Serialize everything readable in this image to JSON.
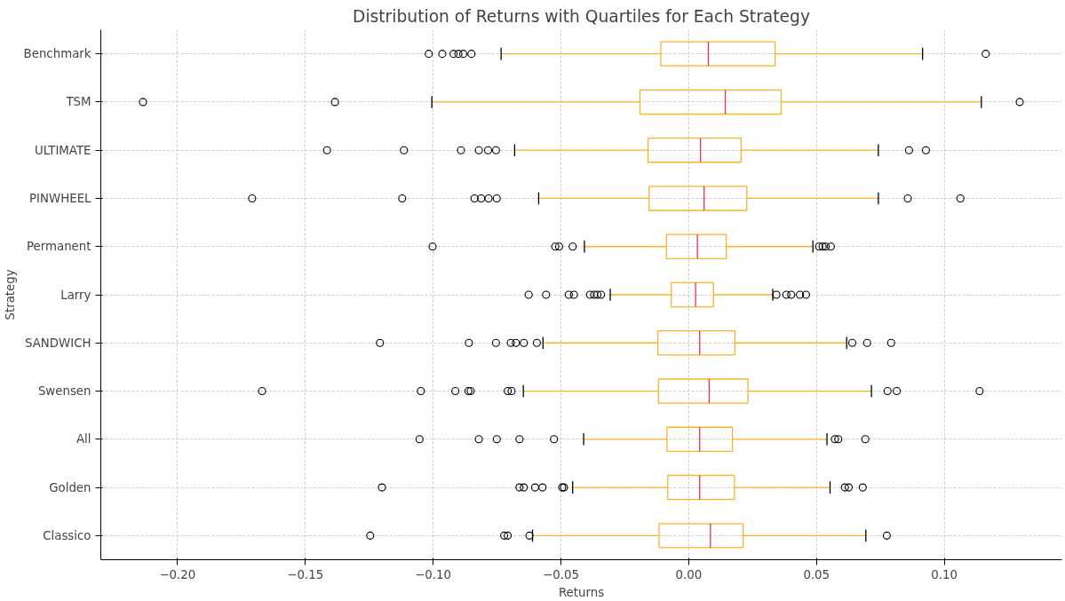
{
  "chart_data": {
    "type": "box",
    "orientation": "horizontal",
    "title": "Distribution of Returns with Quartiles for Each Strategy",
    "xlabel": "Returns",
    "ylabel": "Strategy",
    "categories": [
      "Benchmark",
      "TSM",
      "ULTIMATE",
      "PINWHEEL",
      "Permanent",
      "Larry",
      "SANDWICH",
      "Swensen",
      "All",
      "Golden",
      "Classico"
    ],
    "xlim": [
      -0.23,
      0.146
    ],
    "xticks": [
      {
        "value": -0.2,
        "label": "−0.20"
      },
      {
        "value": -0.15,
        "label": "−0.15"
      },
      {
        "value": -0.1,
        "label": "−0.10"
      },
      {
        "value": -0.05,
        "label": "−0.05"
      },
      {
        "value": 0,
        "label": "0.00"
      },
      {
        "value": 0.05,
        "label": "0.05"
      },
      {
        "value": 0.1,
        "label": "0.10"
      }
    ],
    "grid": true,
    "series": [
      {
        "color": "#f9b42d",
        "boxes": [
          {
            "low": -0.0734,
            "q1": -0.0109,
            "median": 0.0077,
            "q3": 0.0338,
            "high": 0.0915,
            "outliers": [
              -0.1017,
              -0.0964,
              -0.092,
              -0.0901,
              -0.0882,
              -0.085,
              0.1162
            ]
          },
          {
            "low": -0.1005,
            "q1": -0.0191,
            "median": 0.0143,
            "q3": 0.0362,
            "high": 0.1145,
            "outliers": [
              -0.2135,
              -0.1384,
              0.1295
            ]
          },
          {
            "low": -0.0681,
            "q1": -0.0159,
            "median": 0.0046,
            "q3": 0.0205,
            "high": 0.0742,
            "outliers": [
              -0.1415,
              -0.1114,
              -0.0891,
              -0.0821,
              -0.0785,
              -0.0754,
              0.0862,
              0.0928
            ]
          },
          {
            "low": -0.0587,
            "q1": -0.0155,
            "median": 0.006,
            "q3": 0.0227,
            "high": 0.0742,
            "outliers": [
              -0.1708,
              -0.1121,
              -0.0838,
              -0.0812,
              -0.0783,
              -0.0751,
              0.0857,
              0.1063
            ]
          },
          {
            "low": -0.0408,
            "q1": -0.0087,
            "median": 0.0034,
            "q3": 0.0147,
            "high": 0.0486,
            "outliers": [
              -0.1002,
              -0.0522,
              -0.0507,
              -0.0454,
              0.051,
              0.0524,
              0.0536,
              0.0556
            ]
          },
          {
            "low": -0.0307,
            "q1": -0.0068,
            "median": 0.0027,
            "q3": 0.0097,
            "high": 0.0329,
            "outliers": [
              -0.0626,
              -0.0558,
              -0.0469,
              -0.0449,
              -0.0386,
              -0.037,
              -0.0357,
              -0.0343,
              0.0343,
              0.0382,
              0.0401,
              0.0435,
              0.0459
            ]
          },
          {
            "low": -0.057,
            "q1": -0.0121,
            "median": 0.0043,
            "q3": 0.0181,
            "high": 0.0618,
            "outliers": [
              -0.1208,
              -0.086,
              -0.0754,
              -0.0696,
              -0.0676,
              -0.0645,
              -0.0594,
              0.064,
              0.0698,
              0.0792
            ]
          },
          {
            "low": -0.0647,
            "q1": -0.0118,
            "median": 0.008,
            "q3": 0.0232,
            "high": 0.0715,
            "outliers": [
              -0.1669,
              -0.1048,
              -0.0913,
              -0.0862,
              -0.0853,
              -0.0708,
              -0.0693,
              0.0778,
              0.0814,
              0.1138
            ]
          },
          {
            "low": -0.0411,
            "q1": -0.0085,
            "median": 0.0043,
            "q3": 0.0171,
            "high": 0.0541,
            "outliers": [
              -0.1053,
              -0.0821,
              -0.0751,
              -0.0662,
              -0.0527,
              0.0572,
              0.0585,
              0.0691
            ]
          },
          {
            "low": -0.0454,
            "q1": -0.0082,
            "median": 0.0043,
            "q3": 0.0179,
            "high": 0.0553,
            "outliers": [
              -0.12,
              -0.0662,
              -0.0645,
              -0.0601,
              -0.0572,
              -0.0495,
              -0.0488,
              0.0611,
              0.0626,
              0.0681
            ]
          },
          {
            "low": -0.0611,
            "q1": -0.0116,
            "median": 0.0085,
            "q3": 0.0213,
            "high": 0.0693,
            "outliers": [
              -0.1246,
              -0.0722,
              -0.0708,
              -0.0623,
              0.0775
            ]
          }
        ]
      }
    ]
  }
}
